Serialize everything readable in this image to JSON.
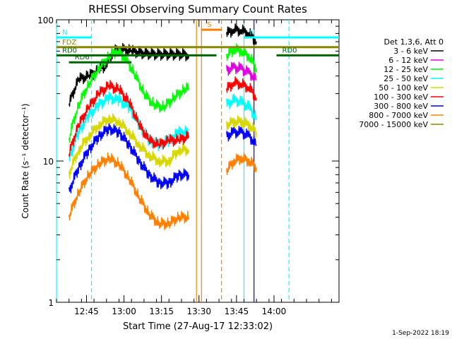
{
  "chart_data": {
    "type": "line",
    "title": "RHESSI Observing Summary Count Rates",
    "xlabel": "Start Time (27-Aug-17 12:33:02)",
    "ylabel": "Count Rate (s⁻¹ detector⁻¹)",
    "footer": "1-Sep-2022 18:19",
    "y_scale": "log",
    "ylim": [
      1,
      100
    ],
    "y_ticks": [
      1,
      10,
      100
    ],
    "xlim_min": [
      0,
      110
    ],
    "x_ticks": [
      {
        "t": 12,
        "label": "12:45"
      },
      {
        "t": 27,
        "label": "13:00"
      },
      {
        "t": 42,
        "label": "13:15"
      },
      {
        "t": 57,
        "label": "13:30"
      },
      {
        "t": 72,
        "label": "13:45"
      },
      {
        "t": 87,
        "label": "14:00"
      }
    ],
    "legend": {
      "header": "Det 1,3,6, Att 0",
      "entries": [
        {
          "label": "3 - 6 keV",
          "color": "#000000"
        },
        {
          "label": "6 - 12 keV",
          "color": "#e000e0"
        },
        {
          "label": "12 - 25 keV",
          "color": "#00ff00"
        },
        {
          "label": "25 - 50 keV",
          "color": "#00ffff"
        },
        {
          "label": "50 - 100 keV",
          "color": "#d8d800"
        },
        {
          "label": "100 - 300 keV",
          "color": "#ff0000"
        },
        {
          "label": "300 - 800 keV",
          "color": "#0000ff"
        },
        {
          "label": "800 - 7000 keV",
          "color": "#ff8000"
        },
        {
          "label": "7000 - 15000 keV",
          "color": "#888800"
        }
      ]
    },
    "series": [
      {
        "name": "3 - 6 keV",
        "color": "#000000",
        "points": [
          [
            5,
            25
          ],
          [
            9,
            38
          ],
          [
            13,
            40
          ],
          [
            17,
            44
          ],
          [
            20,
            48
          ],
          [
            23,
            60
          ],
          [
            26,
            62
          ],
          [
            30,
            60
          ],
          [
            35,
            58
          ],
          [
            40,
            57
          ],
          [
            45,
            57
          ],
          [
            50,
            57
          ],
          [
            53,
            56
          ],
          [
            68,
            80
          ],
          [
            71,
            85
          ],
          [
            74,
            84
          ],
          [
            77,
            80
          ],
          [
            80,
            70
          ]
        ]
      },
      {
        "name": "6 - 12 keV",
        "color": "#e000e0",
        "points": [
          [
            68,
            44
          ],
          [
            71,
            46
          ],
          [
            74,
            45
          ],
          [
            77,
            42
          ],
          [
            80,
            38
          ]
        ]
      },
      {
        "name": "12 - 25 keV",
        "color": "#00ff00",
        "points": [
          [
            5,
            14
          ],
          [
            9,
            25
          ],
          [
            13,
            35
          ],
          [
            17,
            45
          ],
          [
            21,
            55
          ],
          [
            24,
            60
          ],
          [
            27,
            55
          ],
          [
            31,
            42
          ],
          [
            35,
            30
          ],
          [
            39,
            25
          ],
          [
            43,
            24
          ],
          [
            47,
            28
          ],
          [
            51,
            32
          ],
          [
            53,
            33
          ],
          [
            68,
            55
          ],
          [
            71,
            62
          ],
          [
            74,
            60
          ],
          [
            77,
            55
          ],
          [
            80,
            45
          ]
        ]
      },
      {
        "name": "25 - 50 keV",
        "color": "#00ffff",
        "points": [
          [
            5,
            10
          ],
          [
            9,
            16
          ],
          [
            13,
            21
          ],
          [
            17,
            25
          ],
          [
            21,
            28
          ],
          [
            25,
            27
          ],
          [
            29,
            24
          ],
          [
            33,
            18
          ],
          [
            37,
            14
          ],
          [
            41,
            13
          ],
          [
            45,
            14
          ],
          [
            49,
            16
          ],
          [
            53,
            16
          ],
          [
            68,
            25
          ],
          [
            71,
            27
          ],
          [
            74,
            26
          ],
          [
            77,
            24
          ],
          [
            80,
            20
          ]
        ]
      },
      {
        "name": "50 - 100 keV",
        "color": "#d8d800",
        "points": [
          [
            5,
            8
          ],
          [
            9,
            12
          ],
          [
            13,
            15
          ],
          [
            17,
            18
          ],
          [
            21,
            20
          ],
          [
            25,
            19
          ],
          [
            29,
            16
          ],
          [
            33,
            13
          ],
          [
            37,
            11
          ],
          [
            41,
            10
          ],
          [
            45,
            10
          ],
          [
            49,
            12
          ],
          [
            53,
            12
          ],
          [
            68,
            18
          ],
          [
            71,
            19
          ],
          [
            74,
            19
          ],
          [
            77,
            18
          ],
          [
            80,
            16
          ]
        ]
      },
      {
        "name": "100 - 300 keV",
        "color": "#ff0000",
        "points": [
          [
            5,
            11
          ],
          [
            9,
            18
          ],
          [
            13,
            24
          ],
          [
            17,
            30
          ],
          [
            21,
            34
          ],
          [
            25,
            32
          ],
          [
            29,
            26
          ],
          [
            33,
            18
          ],
          [
            37,
            14
          ],
          [
            41,
            13
          ],
          [
            45,
            14
          ],
          [
            49,
            14
          ],
          [
            53,
            15
          ],
          [
            68,
            32
          ],
          [
            71,
            36
          ],
          [
            74,
            35
          ],
          [
            77,
            33
          ],
          [
            80,
            28
          ]
        ]
      },
      {
        "name": "300 - 800 keV",
        "color": "#0000ff",
        "points": [
          [
            5,
            6
          ],
          [
            9,
            9
          ],
          [
            13,
            12
          ],
          [
            17,
            15
          ],
          [
            21,
            17
          ],
          [
            25,
            16
          ],
          [
            29,
            13
          ],
          [
            33,
            10
          ],
          [
            37,
            8
          ],
          [
            41,
            7
          ],
          [
            45,
            7
          ],
          [
            49,
            8
          ],
          [
            53,
            8
          ],
          [
            68,
            15
          ],
          [
            71,
            16
          ],
          [
            74,
            16
          ],
          [
            77,
            15
          ],
          [
            80,
            13
          ]
        ]
      },
      {
        "name": "800 - 7000 keV",
        "color": "#ff8000",
        "points": [
          [
            5,
            4
          ],
          [
            9,
            6
          ],
          [
            13,
            8
          ],
          [
            17,
            9.5
          ],
          [
            21,
            10.5
          ],
          [
            25,
            9.5
          ],
          [
            29,
            7.5
          ],
          [
            33,
            5.5
          ],
          [
            37,
            4.2
          ],
          [
            41,
            3.6
          ],
          [
            45,
            3.6
          ],
          [
            49,
            4
          ],
          [
            53,
            4
          ],
          [
            68,
            8.5
          ],
          [
            71,
            10
          ],
          [
            74,
            10.5
          ],
          [
            77,
            10
          ],
          [
            80,
            9
          ]
        ]
      }
    ],
    "annotations": [
      {
        "label": "N",
        "color": "#00ffff",
        "t0": 0,
        "t1": 14,
        "y": 75
      },
      {
        "label": "N",
        "color": "#00ffff",
        "t0": 75,
        "t1": 113,
        "y": 75
      },
      {
        "label": "S",
        "color": "#ff8000",
        "t0": 58,
        "t1": 66,
        "y": 85
      },
      {
        "label": "FDZ",
        "color": "#888800",
        "t0": 0,
        "t1": 113,
        "y": 64
      },
      {
        "label": "RD0",
        "color": "#006400",
        "t0": 0,
        "t1": 64,
        "y": 56
      },
      {
        "label": "RD0",
        "color": "#006400",
        "t0": 88,
        "t1": 113,
        "y": 56
      },
      {
        "label": "RD6",
        "color": "#006400",
        "t0": 5,
        "t1": 30,
        "y": 50
      }
    ],
    "vertical_lines": [
      {
        "t": 0,
        "color": "#00ffff",
        "dashed": false
      },
      {
        "t": 14,
        "color": "#00ffff",
        "dashed": true
      },
      {
        "t": 56,
        "color": "#ff8000",
        "dashed": false
      },
      {
        "t": 58,
        "color": "#ff8000",
        "dashed": false
      },
      {
        "t": 66,
        "color": "#ff8000",
        "dashed": true
      },
      {
        "t": 75,
        "color": "#00ffff",
        "dashed": false
      },
      {
        "t": 79,
        "color": "#0000ff",
        "dashed": false
      },
      {
        "t": 93,
        "color": "#00ffff",
        "dashed": true
      }
    ]
  }
}
